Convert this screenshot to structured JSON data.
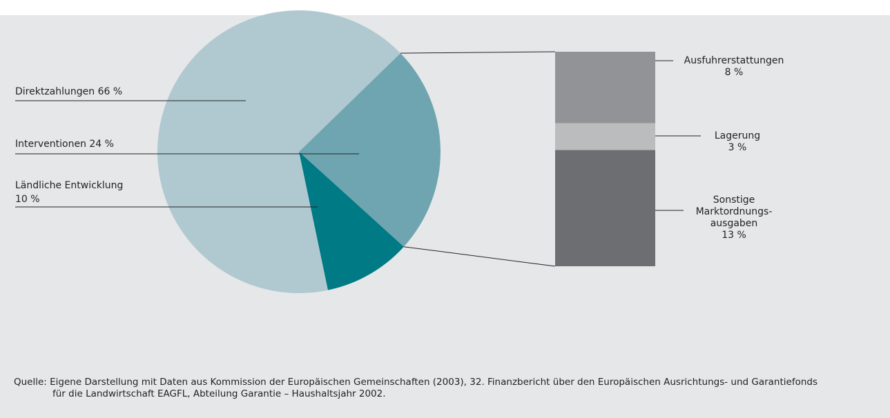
{
  "chart_data": {
    "type": "pie",
    "pie": {
      "categories": [
        "Interventionen",
        "Ländliche Entwicklung",
        "Direktzahlungen"
      ],
      "values": [
        24,
        10,
        66
      ],
      "value_labels": [
        "24 %",
        "10 %",
        "66 %"
      ],
      "colors": [
        "#6fa5b0",
        "#007a85",
        "#b0c9d0"
      ]
    },
    "bar": {
      "categories": [
        "Ausfuhrerstattungen",
        "Lagerung",
        "Sonstige Marktordnungs-ausgaben"
      ],
      "values": [
        8,
        3,
        13
      ],
      "value_labels": [
        "8 %",
        "3 %",
        "13 %"
      ],
      "colors": [
        "#929396",
        "#bbbcbe",
        "#6d6e71"
      ]
    },
    "source": "Quelle: Eigene Darstellung mit Daten aus Kommission der Europäischen Gemeinschaften (2003), 32. Finanzbericht über den Europäischen Ausrichtungs- und Garantiefonds für die Landwirtschaft EAGFL, Abteilung Garantie – Haushaltsjahr 2002."
  }
}
